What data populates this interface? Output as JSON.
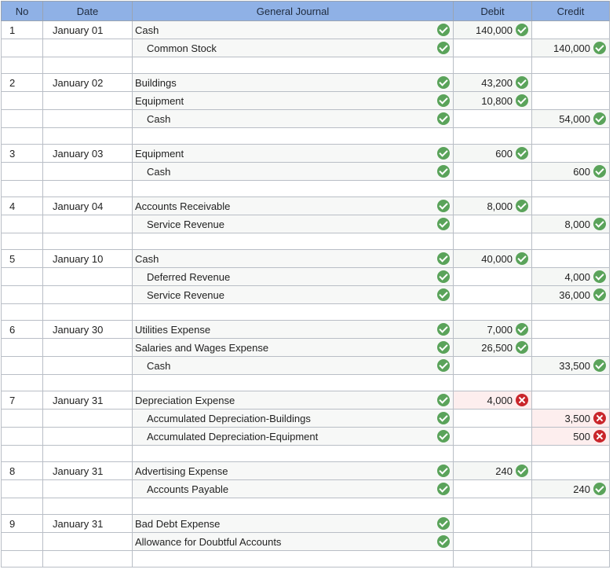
{
  "headers": {
    "no": "No",
    "date": "Date",
    "journal": "General Journal",
    "debit": "Debit",
    "credit": "Credit"
  },
  "colors": {
    "header_bg": "#8fb1e6",
    "ok": "#5aa35a",
    "bad": "#c9262b",
    "wrong_bg": "#fdeeee"
  },
  "entries": [
    {
      "no": "1",
      "date": "January 01",
      "lines": [
        {
          "account": "Cash",
          "indent": false,
          "acct_status": "ok",
          "debit": "140,000",
          "debit_status": "ok",
          "credit": "",
          "credit_status": ""
        },
        {
          "account": "Common Stock",
          "indent": true,
          "acct_status": "ok",
          "debit": "",
          "debit_status": "",
          "credit": "140,000",
          "credit_status": "ok"
        }
      ]
    },
    {
      "no": "2",
      "date": "January 02",
      "lines": [
        {
          "account": "Buildings",
          "indent": false,
          "acct_status": "ok",
          "debit": "43,200",
          "debit_status": "ok",
          "credit": "",
          "credit_status": ""
        },
        {
          "account": "Equipment",
          "indent": false,
          "acct_status": "ok",
          "debit": "10,800",
          "debit_status": "ok",
          "credit": "",
          "credit_status": ""
        },
        {
          "account": "Cash",
          "indent": true,
          "acct_status": "ok",
          "debit": "",
          "debit_status": "",
          "credit": "54,000",
          "credit_status": "ok"
        }
      ]
    },
    {
      "no": "3",
      "date": "January 03",
      "lines": [
        {
          "account": "Equipment",
          "indent": false,
          "acct_status": "ok",
          "debit": "600",
          "debit_status": "ok",
          "credit": "",
          "credit_status": ""
        },
        {
          "account": "Cash",
          "indent": true,
          "acct_status": "ok",
          "debit": "",
          "debit_status": "",
          "credit": "600",
          "credit_status": "ok"
        }
      ]
    },
    {
      "no": "4",
      "date": "January 04",
      "lines": [
        {
          "account": "Accounts Receivable",
          "indent": false,
          "acct_status": "ok",
          "debit": "8,000",
          "debit_status": "ok",
          "credit": "",
          "credit_status": ""
        },
        {
          "account": "Service Revenue",
          "indent": true,
          "acct_status": "ok",
          "debit": "",
          "debit_status": "",
          "credit": "8,000",
          "credit_status": "ok"
        }
      ]
    },
    {
      "no": "5",
      "date": "January 10",
      "lines": [
        {
          "account": "Cash",
          "indent": false,
          "acct_status": "ok",
          "debit": "40,000",
          "debit_status": "ok",
          "credit": "",
          "credit_status": ""
        },
        {
          "account": "Deferred Revenue",
          "indent": true,
          "acct_status": "ok",
          "debit": "",
          "debit_status": "",
          "credit": "4,000",
          "credit_status": "ok"
        },
        {
          "account": "Service Revenue",
          "indent": true,
          "acct_status": "ok",
          "debit": "",
          "debit_status": "",
          "credit": "36,000",
          "credit_status": "ok"
        }
      ]
    },
    {
      "no": "6",
      "date": "January 30",
      "lines": [
        {
          "account": "Utilities Expense",
          "indent": false,
          "acct_status": "ok",
          "debit": "7,000",
          "debit_status": "ok",
          "credit": "",
          "credit_status": ""
        },
        {
          "account": "Salaries and Wages Expense",
          "indent": false,
          "acct_status": "ok",
          "debit": "26,500",
          "debit_status": "ok",
          "credit": "",
          "credit_status": ""
        },
        {
          "account": "Cash",
          "indent": true,
          "acct_status": "ok",
          "debit": "",
          "debit_status": "",
          "credit": "33,500",
          "credit_status": "ok"
        }
      ]
    },
    {
      "no": "7",
      "date": "January 31",
      "lines": [
        {
          "account": "Depreciation Expense",
          "indent": false,
          "acct_status": "ok",
          "debit": "4,000",
          "debit_status": "bad",
          "credit": "",
          "credit_status": ""
        },
        {
          "account": "Accumulated Depreciation-Buildings",
          "indent": true,
          "acct_status": "ok",
          "debit": "",
          "debit_status": "",
          "credit": "3,500",
          "credit_status": "bad"
        },
        {
          "account": "Accumulated Depreciation-Equipment",
          "indent": true,
          "acct_status": "ok",
          "debit": "",
          "debit_status": "",
          "credit": "500",
          "credit_status": "bad"
        }
      ]
    },
    {
      "no": "8",
      "date": "January 31",
      "lines": [
        {
          "account": "Advertising Expense",
          "indent": false,
          "acct_status": "ok",
          "debit": "240",
          "debit_status": "ok",
          "credit": "",
          "credit_status": ""
        },
        {
          "account": "Accounts Payable",
          "indent": true,
          "acct_status": "ok",
          "debit": "",
          "debit_status": "",
          "credit": "240",
          "credit_status": "ok"
        }
      ]
    },
    {
      "no": "9",
      "date": "January 31",
      "lines": [
        {
          "account": "Bad Debt Expense",
          "indent": false,
          "acct_status": "ok",
          "debit": "",
          "debit_status": "",
          "credit": "",
          "credit_status": ""
        },
        {
          "account": "Allowance for Doubtful Accounts",
          "indent": false,
          "acct_status": "ok",
          "debit": "",
          "debit_status": "",
          "credit": "",
          "credit_status": ""
        }
      ]
    }
  ]
}
